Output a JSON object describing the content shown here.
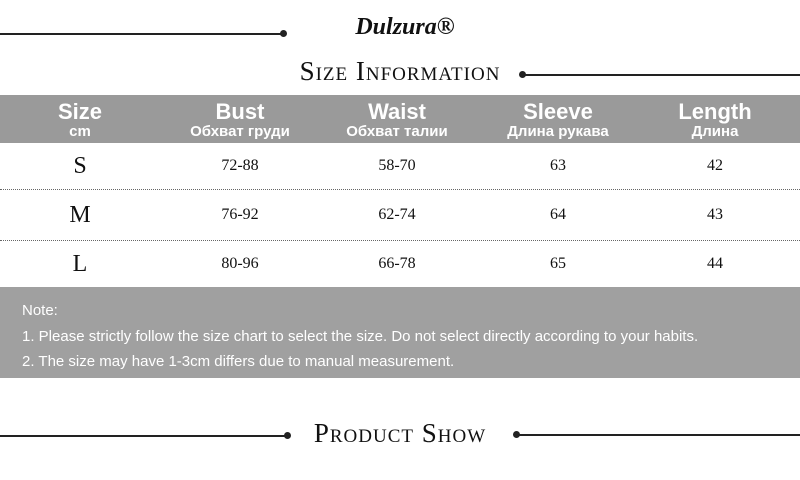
{
  "brand": "Dulzura®",
  "size_title": "Size Information",
  "table": {
    "header": [
      {
        "label": "Size",
        "sub": "cm"
      },
      {
        "label": "Bust",
        "sub": "Обхват груди"
      },
      {
        "label": "Waist",
        "sub": "Обхват талии"
      },
      {
        "label": "Sleeve",
        "sub": "Длина рукава"
      },
      {
        "label": "Length",
        "sub": "Длина"
      }
    ],
    "rows": [
      [
        "S",
        "72-88",
        "58-70",
        "63",
        "42"
      ],
      [
        "M",
        "76-92",
        "62-74",
        "64",
        "43"
      ],
      [
        "L",
        "80-96",
        "66-78",
        "65",
        "44"
      ]
    ]
  },
  "notes": {
    "title": "Note:",
    "items": [
      "1. Please strictly follow the size chart to select the size. Do not select directly according to your habits.",
      "2. The size may have 1-3cm differs due to manual measurement."
    ]
  },
  "product_title": "Product Show"
}
